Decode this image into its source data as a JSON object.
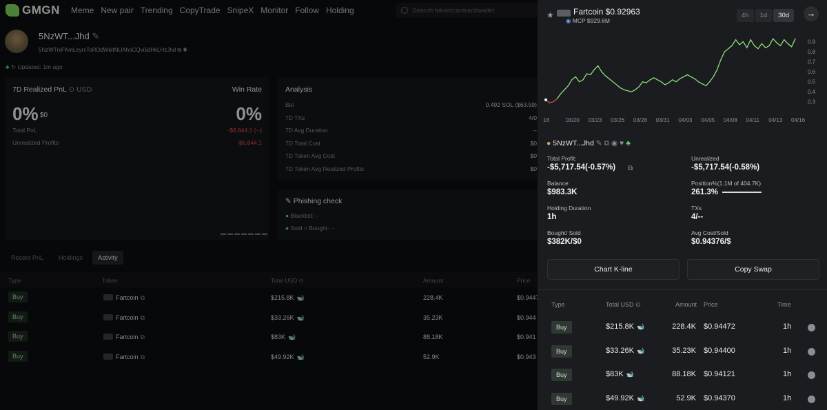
{
  "nav": {
    "logo": "GMGN",
    "links": [
      "Meme",
      "New pair",
      "Trending",
      "CopyTrade",
      "SnipeX",
      "Monitor",
      "Follow",
      "Holding"
    ],
    "search_placeholder": "Search token/contract/wallet"
  },
  "profile": {
    "name": "5NzWT...Jhd",
    "address": "5NzWTniFKmLeyrcToRDdWbitNUAhoCQvi5dHkLHzJhd",
    "updated": "Updated: 1m ago"
  },
  "pnl": {
    "title": "7D Realized PnL",
    "currency": "USD",
    "winrate_label": "Win Rate",
    "pnl_pct": "0%",
    "pnl_usd": "$0",
    "winrate_pct": "0%",
    "total_pnl_label": "Total PnL",
    "total_pnl_value": "-$6,844.1 (--)",
    "unrealized_label": "Unrealized Profits",
    "unrealized_value": "-$6,844.1"
  },
  "analysis": {
    "title": "Analysis",
    "rows": [
      {
        "label": "Bal",
        "value": "0.492 SOL ($63.59)"
      },
      {
        "label": "7D TXs",
        "value": "4/0"
      },
      {
        "label": "7D Avg Duration",
        "value": "--"
      },
      {
        "label": "7D Total Cost",
        "value": "$0"
      },
      {
        "label": "7D Token Avg Cost",
        "value": "$0"
      },
      {
        "label": "7D Token Avg Realized Profits",
        "value": "$0"
      }
    ]
  },
  "phishing": {
    "title": "Phishing check",
    "rows": [
      {
        "label": "Blacklist:",
        "value": "--"
      },
      {
        "label": "Sold > Bought:",
        "value": "--"
      }
    ]
  },
  "tabs": [
    "Recent PnL",
    "Holdings",
    "Activity"
  ],
  "activity": {
    "headers": [
      "Type",
      "Token",
      "Total",
      "USD",
      "Amount",
      "Price"
    ],
    "rows": [
      {
        "type": "Buy",
        "token": "Fartcoin",
        "total": "$215.8K",
        "amount": "228.4K",
        "price": "$0.9447"
      },
      {
        "type": "Buy",
        "token": "Fartcoin",
        "total": "$33.26K",
        "amount": "35.23K",
        "price": "$0.944"
      },
      {
        "type": "Buy",
        "token": "Fartcoin",
        "total": "$83K",
        "amount": "88.18K",
        "price": "$0.941"
      },
      {
        "type": "Buy",
        "token": "Fartcoin",
        "total": "$49.92K",
        "amount": "52.9K",
        "price": "$0.943"
      }
    ]
  },
  "drawer": {
    "token_title": "Fartcoin $0.92963",
    "mcp": "MCP $929.6M",
    "timeframes": [
      "4h",
      "1d",
      "30d"
    ],
    "active_tf": "30d",
    "chart_data": {
      "type": "line",
      "x_ticks": [
        "18",
        "03/20",
        "03/23",
        "03/26",
        "03/28",
        "03/31",
        "04/03",
        "04/05",
        "04/08",
        "04/11",
        "04/13",
        "04/16"
      ],
      "y_ticks": [
        "0.9",
        "0.8",
        "0.7",
        "0.6",
        "0.5",
        "0.4",
        "0.3"
      ],
      "ylim": [
        0.25,
        1.0
      ],
      "values": [
        0.32,
        0.29,
        0.3,
        0.33,
        0.38,
        0.42,
        0.46,
        0.52,
        0.55,
        0.5,
        0.52,
        0.58,
        0.57,
        0.62,
        0.66,
        0.6,
        0.56,
        0.53,
        0.5,
        0.47,
        0.44,
        0.42,
        0.41,
        0.4,
        0.42,
        0.45,
        0.5,
        0.49,
        0.52,
        0.54,
        0.52,
        0.5,
        0.47,
        0.49,
        0.52,
        0.5,
        0.53,
        0.55,
        0.57,
        0.55,
        0.53,
        0.5,
        0.48,
        0.46,
        0.5,
        0.55,
        0.62,
        0.72,
        0.8,
        0.83,
        0.86,
        0.92,
        0.87,
        0.9,
        0.84,
        0.92,
        0.86,
        0.83,
        0.88,
        0.84,
        0.86,
        0.93,
        0.89,
        0.86,
        0.92,
        0.88,
        0.85,
        0.93
      ],
      "down_color": "#e5484d",
      "up_color": "#8de07a"
    },
    "wallet": "5NzWT...Jhd",
    "stats": [
      {
        "label": "Total Profit:",
        "value": "-$5,717.54(-0.57%)",
        "red": true
      },
      {
        "label": "Unrealized",
        "value": "-$5,717.54(-0.58%)",
        "red": true
      },
      {
        "label": "Balance",
        "value": "$983.3K"
      },
      {
        "label": "Position%(1.1M of 404.7K)",
        "value": "261.3%"
      },
      {
        "label": "Holding Duration",
        "value": "1h"
      },
      {
        "label": "TXs",
        "value": "4/--",
        "green": true
      },
      {
        "label": "Bought/ Sold",
        "value": "$382K/$0"
      },
      {
        "label": "Avg Cost/Sold",
        "value": "$0.94376/$"
      }
    ],
    "chart_kline": "Chart K-line",
    "copy_swap": "Copy Swap",
    "table_headers": [
      "Type",
      "Total",
      "USD",
      "Amount",
      "Price",
      "Time"
    ],
    "rows": [
      {
        "type": "Buy",
        "total": "$215.8K",
        "amount": "228.4K",
        "price": "$0.94472",
        "time": "1h"
      },
      {
        "type": "Buy",
        "total": "$33.26K",
        "amount": "35.23K",
        "price": "$0.94400",
        "time": "1h"
      },
      {
        "type": "Buy",
        "total": "$83K",
        "amount": "88.18K",
        "price": "$0.94121",
        "time": "1h"
      },
      {
        "type": "Buy",
        "total": "$49.92K",
        "amount": "52.9K",
        "price": "$0.94370",
        "time": "1h"
      }
    ]
  }
}
